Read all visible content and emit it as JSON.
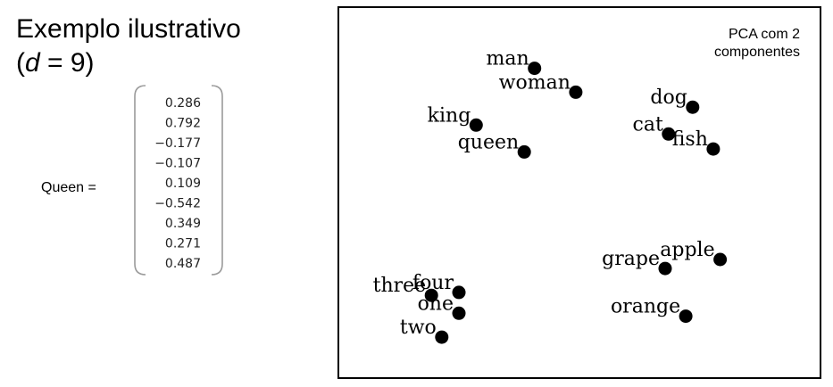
{
  "title": {
    "line1": "Exemplo ilustrativo",
    "line2_prefix": "(",
    "line2_var": "d",
    "line2_suffix": " = 9)"
  },
  "vector": {
    "label": "Queen =",
    "values": [
      "0.286",
      "0.792",
      "−0.177",
      "−0.107",
      "0.109",
      "−0.542",
      "0.349",
      "0.271",
      "0.487"
    ]
  },
  "plot": {
    "annotation": [
      "PCA com 2",
      "componentes"
    ],
    "words": [
      {
        "label": "man",
        "x": 6.2,
        "y": 10.4
      },
      {
        "label": "woman",
        "x": 7.4,
        "y": 9.6
      },
      {
        "label": "king",
        "x": 4.5,
        "y": 8.5
      },
      {
        "label": "queen",
        "x": 5.9,
        "y": 7.6
      },
      {
        "label": "dog",
        "x": 10.8,
        "y": 9.1
      },
      {
        "label": "cat",
        "x": 10.1,
        "y": 8.2
      },
      {
        "label": "fish",
        "x": 11.4,
        "y": 7.7
      },
      {
        "label": "apple",
        "x": 11.6,
        "y": 4.0
      },
      {
        "label": "grape",
        "x": 10.0,
        "y": 3.7
      },
      {
        "label": "orange",
        "x": 10.6,
        "y": 2.1
      },
      {
        "label": "three",
        "x": 3.2,
        "y": 2.8
      },
      {
        "label": "four",
        "x": 4.0,
        "y": 2.9
      },
      {
        "label": "one",
        "x": 4.0,
        "y": 2.2
      },
      {
        "label": "two",
        "x": 3.5,
        "y": 1.4
      }
    ]
  }
}
